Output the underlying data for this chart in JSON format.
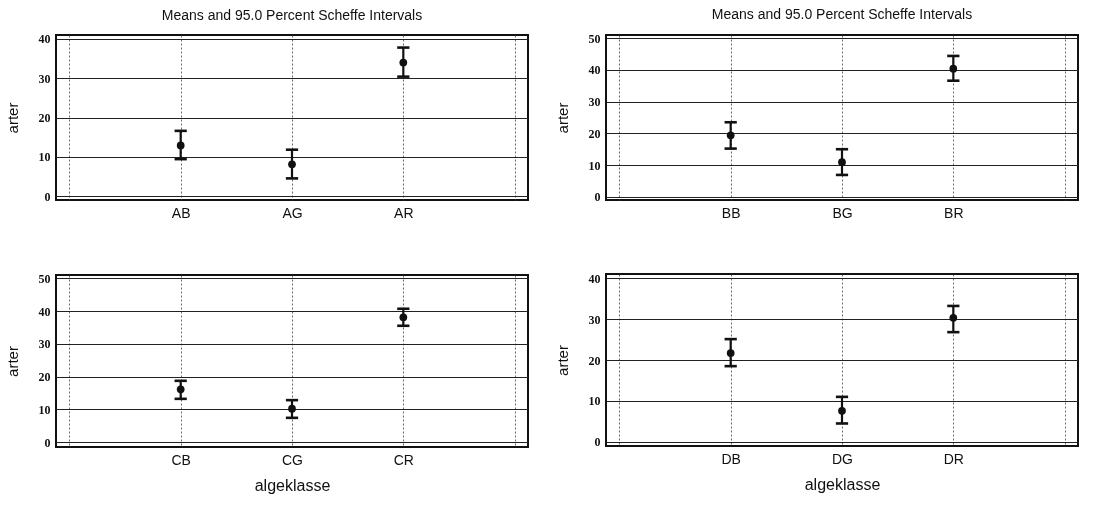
{
  "chart_data": [
    {
      "type": "scatter",
      "title": "Means and 95.0 Percent Scheffe Intervals",
      "ylabel": "arter",
      "categories": [
        null,
        "AB",
        "AG",
        "AR",
        null
      ],
      "values": [
        null,
        12.9,
        8.1,
        34.0,
        null
      ],
      "errors": [
        null,
        [
          9.4,
          16.6
        ],
        [
          4.5,
          11.8
        ],
        [
          30.4,
          37.8
        ],
        null
      ],
      "color": "#111111",
      "ylim": [
        -1,
        41
      ],
      "yticks": [
        0,
        10,
        20,
        30,
        40
      ],
      "grid": true,
      "marker": "circle"
    },
    {
      "type": "scatter",
      "title": "Means and 95.0 Percent Scheffe Intervals",
      "ylabel": "arter",
      "categories": [
        null,
        "BB",
        "BG",
        "BR",
        null
      ],
      "values": [
        null,
        19.4,
        10.9,
        40.4,
        null
      ],
      "errors": [
        null,
        [
          15.2,
          23.5
        ],
        [
          6.9,
          15.0
        ],
        [
          36.6,
          44.4
        ],
        null
      ],
      "color": "#111111",
      "ylim": [
        -1,
        51
      ],
      "yticks": [
        0,
        10,
        20,
        30,
        40,
        50
      ],
      "grid": true,
      "marker": "circle"
    },
    {
      "type": "scatter",
      "xlabel": "algeklasse",
      "ylabel": "arter",
      "categories": [
        null,
        "CB",
        "CG",
        "CR",
        null
      ],
      "values": [
        null,
        16.1,
        10.2,
        38.1,
        null
      ],
      "errors": [
        null,
        [
          13.2,
          18.7
        ],
        [
          7.4,
          12.8
        ],
        [
          35.5,
          40.7
        ],
        null
      ],
      "color": "#111111",
      "ylim": [
        -1.5,
        51
      ],
      "yticks": [
        0,
        10,
        20,
        30,
        40,
        50
      ],
      "grid": true,
      "marker": "circle"
    },
    {
      "type": "scatter",
      "xlabel": "algeklasse",
      "ylabel": "arter",
      "categories": [
        null,
        "DB",
        "DG",
        "DR",
        null
      ],
      "values": [
        null,
        21.7,
        7.6,
        30.3,
        null
      ],
      "errors": [
        null,
        [
          18.5,
          25.1
        ],
        [
          4.5,
          11.0
        ],
        [
          26.8,
          33.2
        ],
        null
      ],
      "color": "#111111",
      "ylim": [
        -1,
        41
      ],
      "yticks": [
        0,
        10,
        20,
        30,
        40
      ],
      "grid": true,
      "marker": "circle"
    }
  ]
}
